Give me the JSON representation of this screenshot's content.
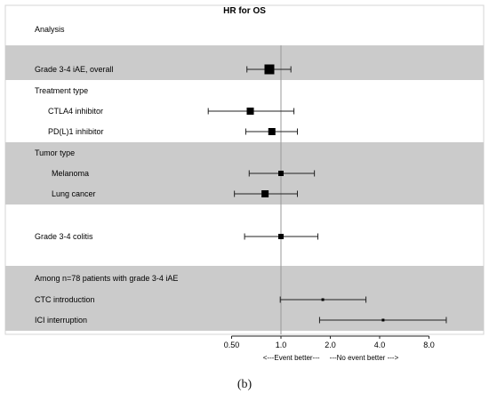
{
  "chart_data": {
    "type": "forest",
    "title": "HR for OS",
    "column_header": "Analysis",
    "x_scale": "log2",
    "xlim": [
      0.42,
      10.5
    ],
    "ticks": [
      0.5,
      1.0,
      2.0,
      4.0,
      8.0
    ],
    "tick_labels": [
      "0.50",
      "1.0",
      "2.0",
      "4.0",
      "8.0"
    ],
    "reference_line": 1.0,
    "xlabel": "<---Event better---     ---No event better --->",
    "shading": "gray",
    "rows": [
      {
        "label": "Grade 3-4 iAE, overall",
        "indent": 0,
        "hr": 0.85,
        "lo": 0.62,
        "hi": 1.15,
        "marker": "large"
      },
      {
        "label": "Treatment type",
        "indent": 0,
        "header": true
      },
      {
        "label": "CTLA4 inhibitor",
        "indent": 1,
        "hr": 0.65,
        "lo": 0.36,
        "hi": 1.2,
        "marker": "medium"
      },
      {
        "label": "PD(L)1 inhibitor",
        "indent": 1,
        "hr": 0.88,
        "lo": 0.61,
        "hi": 1.26,
        "marker": "medium"
      },
      {
        "label": "Tumor type",
        "indent": 0,
        "header": true
      },
      {
        "label": "Melanoma",
        "indent": 2,
        "hr": 1.0,
        "lo": 0.64,
        "hi": 1.6,
        "marker": "small"
      },
      {
        "label": "Lung cancer",
        "indent": 2,
        "hr": 0.8,
        "lo": 0.52,
        "hi": 1.26,
        "marker": "medium"
      },
      {
        "label": "Grade 3-4 colitis",
        "indent": 0,
        "hr": 1.0,
        "lo": 0.6,
        "hi": 1.68,
        "marker": "small"
      },
      {
        "label": "Among n=78 patients with grade 3-4 iAE",
        "indent": 0,
        "header": true
      },
      {
        "label": "CTC introduction",
        "indent": 0,
        "hr": 1.8,
        "lo": 0.99,
        "hi": 3.3,
        "marker": "tiny"
      },
      {
        "label": "ICI interruption",
        "indent": 0,
        "hr": 4.2,
        "lo": 1.72,
        "hi": 10.2,
        "marker": "tiny"
      }
    ]
  },
  "caption": "(b)"
}
